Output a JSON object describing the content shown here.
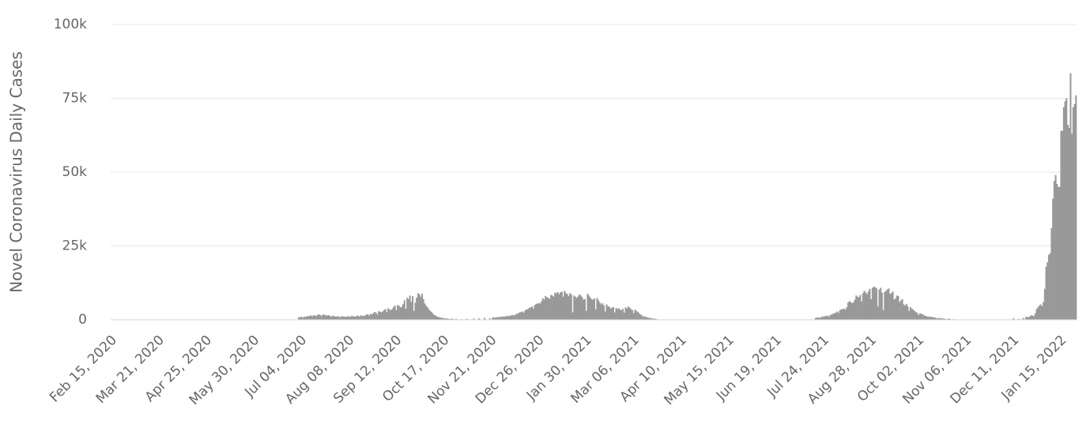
{
  "chart_data": {
    "type": "bar",
    "y_label": "Novel Coronavirus Daily Cases",
    "color": "#999999",
    "grid": true,
    "ylim": [
      0,
      100000
    ],
    "yticks": [
      0,
      {
        "value": 25000,
        "label": "25k"
      },
      {
        "value": 50000,
        "label": "50k"
      },
      {
        "value": 75000,
        "label": "75k"
      },
      {
        "value": 100000,
        "label": "100k"
      }
    ],
    "categories": [
      "Feb 15, 2020",
      null,
      null,
      null,
      null,
      null,
      null,
      null,
      null,
      null,
      null,
      null,
      null,
      null,
      null,
      null,
      null,
      null,
      null,
      null,
      null,
      null,
      null,
      null,
      null,
      null,
      null,
      null,
      null,
      null,
      null,
      null,
      null,
      null,
      null,
      "Mar 21, 2020",
      null,
      null,
      null,
      null,
      null,
      null,
      null,
      null,
      null,
      null,
      null,
      null,
      null,
      null,
      null,
      null,
      null,
      null,
      null,
      null,
      null,
      null,
      null,
      null,
      null,
      null,
      null,
      null,
      null,
      null,
      null,
      null,
      null,
      null,
      "Apr 25, 2020",
      null,
      null,
      null,
      null,
      null,
      null,
      null,
      null,
      null,
      null,
      null,
      null,
      null,
      null,
      null,
      null,
      null,
      null,
      null,
      null,
      null,
      null,
      null,
      null,
      null,
      null,
      null,
      null,
      null,
      null,
      null,
      null,
      null,
      null,
      "May 30, 2020",
      null,
      null,
      null,
      null,
      null,
      null,
      null,
      null,
      null,
      null,
      null,
      null,
      null,
      null,
      null,
      null,
      null,
      null,
      null,
      null,
      null,
      null,
      null,
      null,
      null,
      null,
      null,
      null,
      null,
      null,
      null,
      null,
      null,
      null,
      "Jul 04, 2020",
      null,
      null,
      null,
      null,
      null,
      null,
      null,
      null,
      null,
      null,
      null,
      null,
      null,
      null,
      null,
      null,
      null,
      null,
      null,
      null,
      null,
      null,
      null,
      null,
      null,
      null,
      null,
      null,
      null,
      null,
      null,
      null,
      null,
      null,
      "Aug 08, 2020",
      null,
      null,
      null,
      null,
      null,
      null,
      null,
      null,
      null,
      null,
      null,
      null,
      null,
      null,
      null,
      null,
      null,
      null,
      null,
      null,
      null,
      null,
      null,
      null,
      null,
      null,
      null,
      null,
      null,
      null,
      null,
      null,
      null,
      null,
      "Sep 12, 2020",
      null,
      null,
      null,
      null,
      null,
      null,
      null,
      null,
      null,
      null,
      null,
      null,
      null,
      null,
      null,
      null,
      null,
      null,
      null,
      null,
      null,
      null,
      null,
      null,
      null,
      null,
      null,
      null,
      null,
      null,
      null,
      null,
      null,
      null,
      "Oct 17, 2020",
      null,
      null,
      null,
      null,
      null,
      null,
      null,
      null,
      null,
      null,
      null,
      null,
      null,
      null,
      null,
      null,
      null,
      null,
      null,
      null,
      null,
      null,
      null,
      null,
      null,
      null,
      null,
      null,
      null,
      null,
      null,
      null,
      null,
      null,
      "Nov 21, 2020",
      null,
      null,
      null,
      null,
      null,
      null,
      null,
      null,
      null,
      null,
      null,
      null,
      null,
      null,
      null,
      null,
      null,
      null,
      null,
      null,
      null,
      null,
      null,
      null,
      null,
      null,
      null,
      null,
      null,
      null,
      null,
      null,
      null,
      null,
      "Dec 26, 2020",
      null,
      null,
      null,
      null,
      null,
      null,
      null,
      null,
      null,
      null,
      null,
      null,
      null,
      null,
      null,
      null,
      null,
      null,
      null,
      null,
      null,
      null,
      null,
      null,
      null,
      null,
      null,
      null,
      null,
      null,
      null,
      null,
      null,
      null,
      "Jan 30, 2021",
      null,
      null,
      null,
      null,
      null,
      null,
      null,
      null,
      null,
      null,
      null,
      null,
      null,
      null,
      null,
      null,
      null,
      null,
      null,
      null,
      null,
      null,
      null,
      null,
      null,
      null,
      null,
      null,
      null,
      null,
      null,
      null,
      null,
      null,
      "Mar 06, 2021",
      null,
      null,
      null,
      null,
      null,
      null,
      null,
      null,
      null,
      null,
      null,
      null,
      null,
      null,
      null,
      null,
      null,
      null,
      null,
      null,
      null,
      null,
      null,
      null,
      null,
      null,
      null,
      null,
      null,
      null,
      null,
      null,
      null,
      null,
      "Apr 10, 2021",
      null,
      null,
      null,
      null,
      null,
      null,
      null,
      null,
      null,
      null,
      null,
      null,
      null,
      null,
      null,
      null,
      null,
      null,
      null,
      null,
      null,
      null,
      null,
      null,
      null,
      null,
      null,
      null,
      null,
      null,
      null,
      null,
      null,
      null,
      "May 15, 2021",
      null,
      null,
      null,
      null,
      null,
      null,
      null,
      null,
      null,
      null,
      null,
      null,
      null,
      null,
      null,
      null,
      null,
      null,
      null,
      null,
      null,
      null,
      null,
      null,
      null,
      null,
      null,
      null,
      null,
      null,
      null,
      null,
      null,
      null,
      "Jun 19, 2021",
      null,
      null,
      null,
      null,
      null,
      null,
      null,
      null,
      null,
      null,
      null,
      null,
      null,
      null,
      null,
      null,
      null,
      null,
      null,
      null,
      null,
      null,
      null,
      null,
      null,
      null,
      null,
      null,
      null,
      null,
      null,
      null,
      null,
      null,
      "Jul 24, 2021",
      null,
      null,
      null,
      null,
      null,
      null,
      null,
      null,
      null,
      null,
      null,
      null,
      null,
      null,
      null,
      null,
      null,
      null,
      null,
      null,
      null,
      null,
      null,
      null,
      null,
      null,
      null,
      null,
      null,
      null,
      null,
      null,
      null,
      null,
      "Aug 28, 2021",
      null,
      null,
      null,
      null,
      null,
      null,
      null,
      null,
      null,
      null,
      null,
      null,
      null,
      null,
      null,
      null,
      null,
      null,
      null,
      null,
      null,
      null,
      null,
      null,
      null,
      null,
      null,
      null,
      null,
      null,
      null,
      null,
      null,
      null,
      "Oct 02, 2021",
      null,
      null,
      null,
      null,
      null,
      null,
      null,
      null,
      null,
      null,
      null,
      null,
      null,
      null,
      null,
      null,
      null,
      null,
      null,
      null,
      null,
      null,
      null,
      null,
      null,
      null,
      null,
      null,
      null,
      null,
      null,
      null,
      null,
      null,
      "Nov 06, 2021",
      null,
      null,
      null,
      null,
      null,
      null,
      null,
      null,
      null,
      null,
      null,
      null,
      null,
      null,
      null,
      null,
      null,
      null,
      null,
      null,
      null,
      null,
      null,
      null,
      null,
      null,
      null,
      null,
      null,
      null,
      null,
      null,
      null,
      null,
      "Dec 11, 2021",
      null,
      null,
      null,
      null,
      null,
      null,
      null,
      null,
      null,
      null,
      null,
      null,
      null,
      null,
      null,
      null,
      null,
      null,
      null,
      null,
      null,
      null,
      null,
      null,
      null,
      null,
      null,
      null,
      null,
      null,
      null,
      null,
      null,
      null,
      "Jan 15, 2022",
      null,
      null,
      null,
      null,
      null,
      null,
      null,
      null,
      null,
      null,
      null
    ],
    "values": [
      0,
      0,
      0,
      0,
      0,
      0,
      0,
      0,
      0,
      0,
      0,
      0,
      0,
      0,
      0,
      0,
      0,
      0,
      0,
      0,
      0,
      0,
      0,
      0,
      0,
      0,
      0,
      0,
      0,
      0,
      0,
      0,
      0,
      0,
      0,
      0,
      0,
      0,
      0,
      0,
      0,
      0,
      0,
      0,
      0,
      0,
      0,
      0,
      0,
      0,
      0,
      0,
      0,
      0,
      0,
      0,
      0,
      0,
      0,
      0,
      0,
      0,
      0,
      0,
      0,
      0,
      0,
      0,
      0,
      0,
      0,
      0,
      0,
      0,
      0,
      0,
      0,
      0,
      0,
      0,
      0,
      0,
      0,
      0,
      0,
      0,
      0,
      0,
      0,
      0,
      0,
      0,
      0,
      0,
      0,
      0,
      0,
      0,
      0,
      0,
      0,
      0,
      0,
      0,
      0,
      0,
      0,
      0,
      0,
      0,
      0,
      0,
      0,
      0,
      0,
      0,
      0,
      0,
      0,
      0,
      0,
      0,
      0,
      0,
      0,
      0,
      0,
      0,
      0,
      0,
      0,
      0,
      0,
      0,
      0,
      0,
      0,
      0,
      800,
      900,
      1000,
      700,
      1100,
      900,
      1200,
      1200,
      1300,
      1500,
      1100,
      1600,
      1400,
      1300,
      1700,
      1800,
      1600,
      1200,
      1800,
      1700,
      1500,
      1400,
      1600,
      1300,
      1000,
      1400,
      1200,
      1100,
      1100,
      1200,
      1000,
      900,
      1200,
      1100,
      1000,
      1000,
      1100,
      1200,
      900,
      1300,
      1200,
      1100,
      1100,
      1300,
      1400,
      1000,
      1500,
      1300,
      1200,
      1500,
      1700,
      1900,
      1400,
      2000,
      1800,
      2200,
      2600,
      2400,
      1800,
      2900,
      2700,
      2500,
      2800,
      3300,
      3600,
      2600,
      3900,
      3500,
      3200,
      3700,
      4300,
      4800,
      3300,
      5000,
      4700,
      4200,
      4400,
      5300,
      6600,
      3700,
      7400,
      7000,
      8200,
      6000,
      8000,
      3000,
      5800,
      7500,
      9000,
      8600,
      7800,
      8800,
      7000,
      5500,
      4800,
      4200,
      3600,
      3000,
      2600,
      2100,
      1600,
      1400,
      1100,
      900,
      800,
      700,
      600,
      500,
      400,
      500,
      300,
      300,
      200,
      400,
      200,
      100,
      300,
      0,
      0,
      0,
      200,
      0,
      0,
      0,
      300,
      0,
      0,
      0,
      0,
      400,
      0,
      0,
      0,
      500,
      0,
      0,
      0,
      600,
      0,
      0,
      0,
      500,
      0,
      700,
      800,
      700,
      800,
      900,
      900,
      1000,
      1000,
      1100,
      1100,
      1200,
      1300,
      1200,
      1400,
      1500,
      1600,
      1400,
      1800,
      2000,
      2200,
      2500,
      2600,
      2800,
      2400,
      3200,
      3500,
      3600,
      4000,
      4200,
      4500,
      3800,
      4900,
      5300,
      5500,
      5600,
      5500,
      6200,
      7300,
      6800,
      8000,
      7600,
      7500,
      7000,
      8400,
      8200,
      7800,
      9200,
      8900,
      9400,
      8600,
      9300,
      9500,
      7800,
      9800,
      9000,
      8700,
      8000,
      9000,
      8500,
      2500,
      8200,
      7800,
      7400,
      7900,
      8600,
      8200,
      7600,
      6800,
      7000,
      3000,
      8800,
      8200,
      7500,
      7000,
      6800,
      7200,
      3500,
      7400,
      6600,
      5800,
      5200,
      5600,
      4800,
      2800,
      5200,
      4600,
      4400,
      3800,
      4100,
      4300,
      2500,
      4000,
      3600,
      3900,
      3400,
      3200,
      3700,
      2400,
      4200,
      3800,
      4500,
      4100,
      3600,
      3300,
      2200,
      3400,
      3000,
      2600,
      2200,
      1800,
      1500,
      1000,
      1200,
      900,
      800,
      700,
      500,
      600,
      300,
      400,
      300,
      200,
      100,
      0,
      0,
      0,
      0,
      0,
      0,
      0,
      0,
      0,
      0,
      0,
      0,
      0,
      0,
      0,
      0,
      0,
      0,
      0,
      0,
      0,
      0,
      0,
      0,
      0,
      0,
      0,
      0,
      0,
      0,
      0,
      0,
      0,
      0,
      0,
      0,
      0,
      0,
      0,
      0,
      0,
      0,
      0,
      0,
      0,
      0,
      0,
      0,
      0,
      0,
      0,
      0,
      0,
      0,
      0,
      0,
      0,
      0,
      0,
      0,
      0,
      0,
      0,
      0,
      0,
      0,
      0,
      0,
      0,
      0,
      0,
      0,
      0,
      0,
      0,
      0,
      0,
      0,
      0,
      0,
      0,
      0,
      0,
      0,
      0,
      0,
      0,
      0,
      0,
      0,
      0,
      0,
      0,
      0,
      0,
      0,
      0,
      0,
      0,
      0,
      0,
      0,
      0,
      0,
      0,
      0,
      0,
      0,
      0,
      0,
      0,
      0,
      0,
      0,
      0,
      600,
      700,
      800,
      600,
      900,
      1000,
      1100,
      1200,
      1300,
      1400,
      1100,
      1600,
      1800,
      2000,
      2200,
      2400,
      2800,
      2300,
      3200,
      3500,
      3600,
      3800,
      3400,
      4200,
      5800,
      6300,
      6000,
      5600,
      5900,
      6800,
      8200,
      7800,
      7600,
      8400,
      6200,
      9000,
      9800,
      9200,
      8600,
      9600,
      10500,
      7000,
      10800,
      11200,
      11000,
      10600,
      4500,
      10200,
      10800,
      9200,
      3200,
      9400,
      9800,
      10300,
      10600,
      8800,
      9000,
      9600,
      6800,
      7200,
      8200,
      8000,
      6000,
      6500,
      7000,
      5200,
      4800,
      5400,
      4600,
      3000,
      4200,
      3800,
      3400,
      3000,
      2600,
      2300,
      1600,
      2200,
      2000,
      1800,
      1500,
      1300,
      1200,
      900,
      1100,
      1000,
      900,
      800,
      700,
      600,
      400,
      600,
      500,
      500,
      400,
      300,
      300,
      0,
      400,
      300,
      0,
      0,
      200,
      0,
      0,
      0,
      0,
      0,
      0,
      0,
      0,
      0,
      0,
      0,
      0,
      0,
      0,
      0,
      0,
      0,
      0,
      0,
      0,
      0,
      0,
      0,
      0,
      0,
      0,
      0,
      0,
      0,
      0,
      0,
      0,
      0,
      0,
      0,
      0,
      0,
      0,
      0,
      0,
      0,
      0,
      0,
      500,
      0,
      0,
      0,
      300,
      0,
      0,
      600,
      0,
      900,
      1000,
      800,
      1200,
      1500,
      1400,
      1200,
      2200,
      3600,
      4200,
      4800,
      5200,
      4600,
      6000,
      10500,
      18000,
      19500,
      22000,
      22500,
      31000,
      41000,
      47000,
      49000,
      46000,
      45000,
      45000,
      64000,
      64000,
      72000,
      74000,
      75000,
      66000,
      65000,
      83500,
      63000,
      72000,
      73000,
      76000
    ]
  }
}
